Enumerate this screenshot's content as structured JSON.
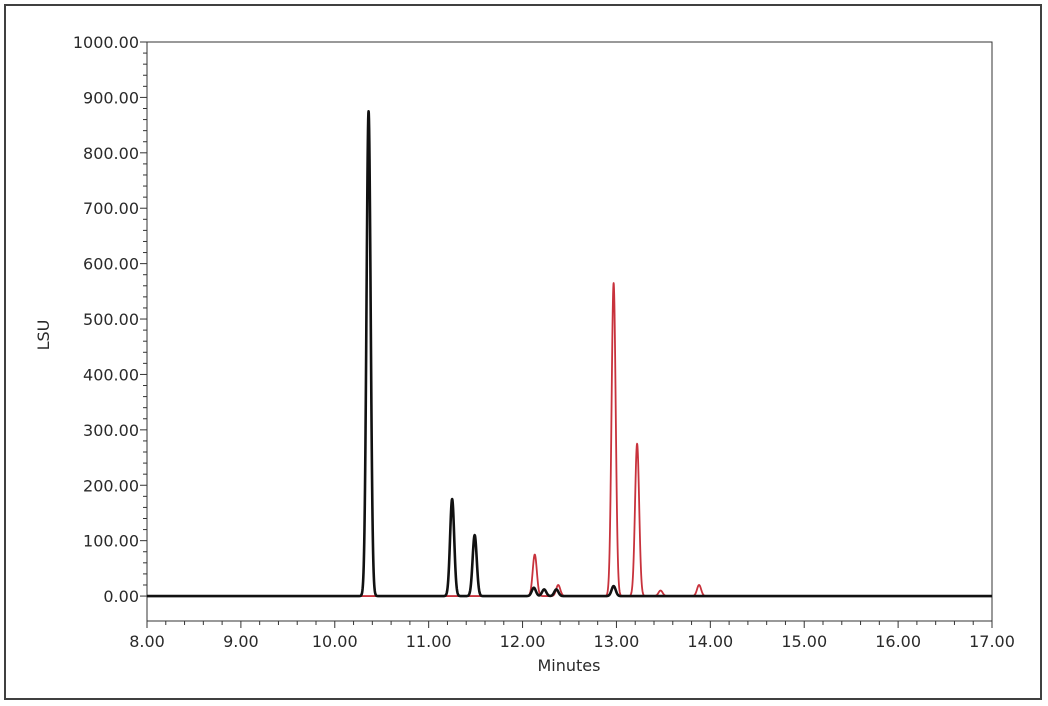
{
  "chart_data": {
    "type": "line",
    "title": "",
    "xlabel": "Minutes",
    "ylabel": "LSU",
    "xlim": [
      8.0,
      17.0
    ],
    "ylim": [
      -45,
      1000
    ],
    "x_ticks": [
      "8.00",
      "9.00",
      "10.00",
      "11.00",
      "12.00",
      "13.00",
      "14.00",
      "15.00",
      "16.00",
      "17.00"
    ],
    "y_ticks": [
      "0.00",
      "100.00",
      "200.00",
      "300.00",
      "400.00",
      "500.00",
      "600.00",
      "700.00",
      "800.00",
      "900.00",
      "1000.00"
    ],
    "grid": false,
    "legend": "none",
    "series": [
      {
        "color": "#c8323c",
        "peaks": [
          {
            "rt": 12.13,
            "height": 75
          },
          {
            "rt": 12.38,
            "height": 20
          },
          {
            "rt": 12.97,
            "height": 565
          },
          {
            "rt": 13.22,
            "height": 275
          },
          {
            "rt": 13.47,
            "height": 10
          },
          {
            "rt": 13.88,
            "height": 20
          }
        ]
      },
      {
        "color": "#111111",
        "peaks": [
          {
            "rt": 10.36,
            "height": 875
          },
          {
            "rt": 11.25,
            "height": 175
          },
          {
            "rt": 11.49,
            "height": 110
          },
          {
            "rt": 12.12,
            "height": 15
          },
          {
            "rt": 12.23,
            "height": 12
          },
          {
            "rt": 12.36,
            "height": 12
          },
          {
            "rt": 12.97,
            "height": 18
          }
        ]
      }
    ]
  }
}
